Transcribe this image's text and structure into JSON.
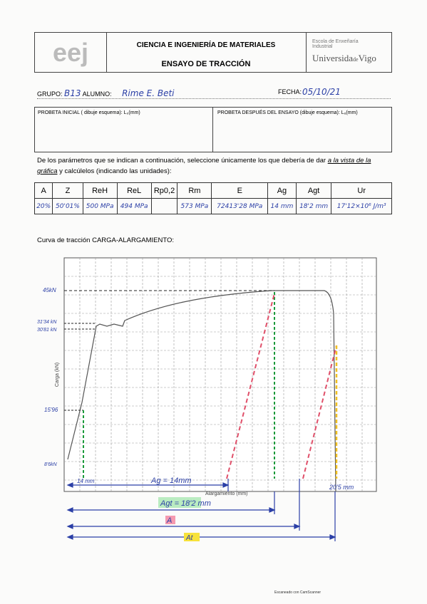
{
  "header": {
    "logo": "eej",
    "course": "CIENCIA E INGENIERÍA DE MATERIALES",
    "title": "ENSAYO DE TRACCIÓN",
    "school": "Escola de Enxeñaría Industrial",
    "university": "Universida",
    "university_de": "de",
    "university_city": "Vigo"
  },
  "student": {
    "group_label": "GRUPO:",
    "group": "B13",
    "name_label": "ALUMNO:",
    "name": "Rime E. Beti",
    "date_label": "FECHA:",
    "date": "05/10/21"
  },
  "specimens": {
    "initial": "PROBETA INICIAL ( dibuje esquema): L₀(mm)",
    "final": "PROBETA DESPUÉS DEL ENSAYO (dibuje esquema): Lᵤ(mm)"
  },
  "instructions": {
    "before": "De los parámetros que se indican a continuación, seleccione únicamente los que debería de dar ",
    "emphasis": "a la vista de la gráfica",
    "after": " y calcúlelos (indicando las unidades):"
  },
  "table": {
    "header": [
      "A",
      "Z",
      "ReH",
      "ReL",
      "Rp0,2",
      "Rm",
      "E",
      "Ag",
      "Agt",
      "Ur"
    ],
    "rows": [
      [
        "20%",
        "50'01%",
        "500 MPa",
        "494 MPa",
        null,
        "573 MPa",
        "72413'28 MPa",
        "14 mm",
        "18'2 mm",
        "17'12×10⁶ J/m³"
      ]
    ]
  },
  "curve": {
    "title": "Curva de tracción CARGA-ALARGAMIENTO:",
    "y_label": "Carga (kN)",
    "x_label": "Alargamiento (mm)",
    "annotations": {
      "max_load": "45kN",
      "upper_yield": "31'34 kN",
      "lower_yield": "30'81 kN",
      "load_1": "15'96",
      "load_0": "8'6kN",
      "elong_1": "14 mm",
      "ag": "Ag = 14mm",
      "elong_end": "20'5 mm",
      "agt": "Agt = 18'2 mm",
      "a": "A",
      "at": "At"
    }
  },
  "footer": "Escaneado con CamScanner"
}
